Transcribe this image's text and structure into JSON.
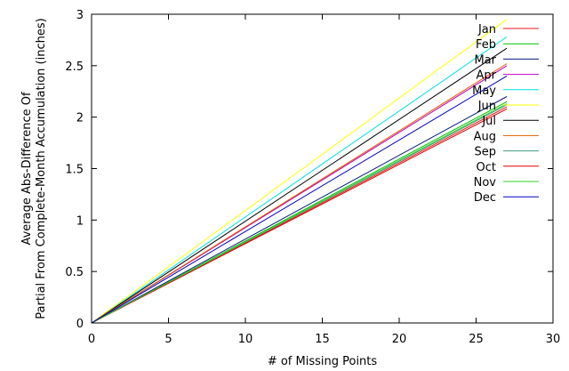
{
  "chart_data": {
    "type": "line",
    "title": "",
    "xlabel": "# of Missing Points",
    "ylabel_line1": "Average Abs-Difference Of",
    "ylabel_line2": "Partial From Complete-Month Accumulation (inches)",
    "xlim": [
      0,
      30
    ],
    "ylim": [
      0,
      3
    ],
    "xticks": [
      0,
      5,
      10,
      15,
      20,
      25,
      30
    ],
    "yticks": [
      0,
      0.5,
      1,
      1.5,
      2,
      2.5,
      3
    ],
    "xtick_labels": [
      "0",
      "5",
      "10",
      "15",
      "20",
      "25",
      "30"
    ],
    "ytick_labels": [
      "0",
      "0.5",
      "1",
      "1.5",
      "2",
      "2.5",
      "3"
    ],
    "grid": false,
    "legend_position": "top-right",
    "series": [
      {
        "name": "Jan",
        "color": "#e41a1c",
        "x": [
          0,
          27
        ],
        "y": [
          0,
          2.1
        ]
      },
      {
        "name": "Feb",
        "color": "#00c000",
        "x": [
          0,
          27
        ],
        "y": [
          0,
          2.15
        ]
      },
      {
        "name": "Mar",
        "color": "#0a1a7a",
        "x": [
          0,
          27
        ],
        "y": [
          0,
          2.2
        ]
      },
      {
        "name": "Apr",
        "color": "#c000c0",
        "x": [
          0,
          27
        ],
        "y": [
          0,
          2.5
        ]
      },
      {
        "name": "May",
        "color": "#00e0e0",
        "x": [
          0,
          27
        ],
        "y": [
          0,
          2.78
        ]
      },
      {
        "name": "Jun",
        "color": "#ffff00",
        "x": [
          0,
          27
        ],
        "y": [
          0,
          2.95
        ]
      },
      {
        "name": "Jul",
        "color": "#000000",
        "x": [
          0,
          27
        ],
        "y": [
          0,
          2.67
        ]
      },
      {
        "name": "Aug",
        "color": "#e06000",
        "x": [
          0,
          27
        ],
        "y": [
          0,
          2.52
        ]
      },
      {
        "name": "Sep",
        "color": "#40a080",
        "x": [
          0,
          27
        ],
        "y": [
          0,
          2.12
        ]
      },
      {
        "name": "Oct",
        "color": "#e00000",
        "x": [
          0,
          27
        ],
        "y": [
          0,
          2.08
        ]
      },
      {
        "name": "Nov",
        "color": "#30d030",
        "x": [
          0,
          27
        ],
        "y": [
          0,
          2.13
        ]
      },
      {
        "name": "Dec",
        "color": "#0000c0",
        "x": [
          0,
          27
        ],
        "y": [
          0,
          2.4
        ]
      }
    ]
  }
}
